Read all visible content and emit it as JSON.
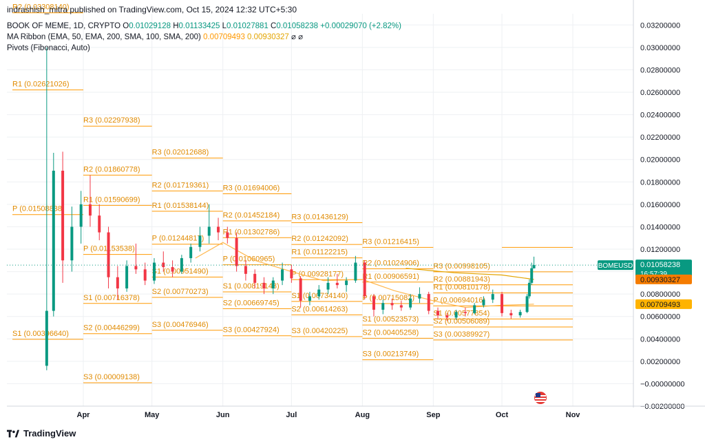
{
  "header": {
    "publisher": "indrashish_mitra published on TradingView.com, Oct 15, 2024 12:32 UTC+5:30",
    "symbol_line": "BOOK OF MEME, 1D, CRYPTO",
    "o_label": "O",
    "o_value": "0.01029128",
    "h_label": "H",
    "h_value": "0.01133425",
    "l_label": "L",
    "l_value": "0.01027881",
    "c_label": "C",
    "c_value": "0.01058238",
    "change": "+0.00029070 (+2.82%)",
    "ma_label": "MA Ribbon (EMA, 50, EMA, 200, SMA, 100, SMA, 200)",
    "ma_v1": "0.00709493",
    "ma_v2": "0.00930327",
    "pivots_label": "Pivots (Fibonacci, Auto)"
  },
  "footer": {
    "brand": "TradingView"
  },
  "colors": {
    "up": "#089981",
    "down": "#f23645",
    "pivot": "#ff9800",
    "ma_fast": "#ffb74d",
    "ma_slow": "#e3a400",
    "grid": "#eef0f3"
  },
  "chart_data": {
    "type": "candlestick",
    "symbol": "BOMEUSD",
    "ylim": [
      -0.002,
      0.033
    ],
    "y_ticks": [
      "0.03200000",
      "0.03000000",
      "0.02800000",
      "0.02600000",
      "0.02400000",
      "0.02200000",
      "0.02000000",
      "0.01800000",
      "0.01600000",
      "0.01400000",
      "0.01200000",
      "0.01000000",
      "0.00800000",
      "0.00600000",
      "0.00400000",
      "0.00200000",
      "−0.00000000",
      "−0.00200000"
    ],
    "y_tick_values": [
      0.032,
      0.03,
      0.028,
      0.026,
      0.024,
      0.022,
      0.02,
      0.018,
      0.016,
      0.014,
      0.012,
      0.01,
      0.008,
      0.006,
      0.004,
      0.002,
      0.0,
      -0.002
    ],
    "x_ticks": [
      {
        "label": "Apr",
        "date": "2024-04-01"
      },
      {
        "label": "May",
        "date": "2024-05-01"
      },
      {
        "label": "Jun",
        "date": "2024-06-01"
      },
      {
        "label": "Jul",
        "date": "2024-07-01"
      },
      {
        "label": "Aug",
        "date": "2024-08-01"
      },
      {
        "label": "Sep",
        "date": "2024-09-01"
      },
      {
        "label": "Oct",
        "date": "2024-10-01"
      },
      {
        "label": "Nov",
        "date": "2024-11-01"
      }
    ],
    "last_price": {
      "symbol": "BOMEUSD",
      "value": "0.01058238",
      "countdown": "16:57:39"
    },
    "ma_badges": [
      "0.00930327",
      "0.00709493"
    ],
    "pivot_periods": [
      {
        "start": "2024-03-01",
        "end": "2024-04-01",
        "levels": [
          {
            "name": "R2",
            "value": 0.0330814,
            "label": "R2 (0.03308140)"
          },
          {
            "name": "R1",
            "value": 0.02621026,
            "label": "R1 (0.02621026)"
          },
          {
            "name": "P",
            "value": 0.01508838,
            "label": "P (0.01508838)"
          },
          {
            "name": "S1",
            "value": 0.0039664,
            "label": "S1 (0.00396640)"
          }
        ]
      },
      {
        "start": "2024-04-01",
        "end": "2024-05-01",
        "levels": [
          {
            "name": "R3",
            "value": 0.02297938,
            "label": "R3 (0.02297938)"
          },
          {
            "name": "R2",
            "value": 0.01860778,
            "label": "R2 (0.01860778)"
          },
          {
            "name": "R1",
            "value": 0.01590699,
            "label": "R1 (0.01590699)"
          },
          {
            "name": "P",
            "value": 0.01153538,
            "label": "P (0.01153538)"
          },
          {
            "name": "S1",
            "value": 0.00716378,
            "label": "S1 (0.00716378)"
          },
          {
            "name": "S2",
            "value": 0.00446299,
            "label": "S2 (0.00446299)"
          },
          {
            "name": "S3",
            "value": 9.138e-05,
            "label": "S3 (0.00009138)"
          }
        ]
      },
      {
        "start": "2024-05-01",
        "end": "2024-06-01",
        "levels": [
          {
            "name": "R3",
            "value": 0.02012688,
            "label": "R3 (0.02012688)"
          },
          {
            "name": "R2",
            "value": 0.01719361,
            "label": "R2 (0.01719361)"
          },
          {
            "name": "R1",
            "value": 0.01538144,
            "label": "R1 (0.01538144)"
          },
          {
            "name": "P",
            "value": 0.01244817,
            "label": "P (0.01244817)"
          },
          {
            "name": "S1",
            "value": 0.0095149,
            "label": "S1 (0.00951490)"
          },
          {
            "name": "S2",
            "value": 0.00770273,
            "label": "S2 (0.00770273)"
          },
          {
            "name": "S3",
            "value": 0.00476946,
            "label": "S3 (0.00476946)"
          }
        ]
      },
      {
        "start": "2024-06-01",
        "end": "2024-07-01",
        "levels": [
          {
            "name": "R3",
            "value": 0.01694006,
            "label": "R3 (0.01694006)"
          },
          {
            "name": "R2",
            "value": 0.01452184,
            "label": "R2 (0.01452184)"
          },
          {
            "name": "R1",
            "value": 0.01302786,
            "label": "R1 (0.01302786)"
          },
          {
            "name": "P",
            "value": 0.01060965,
            "label": "P (0.01060965)"
          },
          {
            "name": "S1",
            "value": 0.00819143,
            "label": "S1 (0.00819143)"
          },
          {
            "name": "S2",
            "value": 0.00669745,
            "label": "S2 (0.00669745)"
          },
          {
            "name": "S3",
            "value": 0.00427924,
            "label": "S3 (0.00427924)"
          }
        ]
      },
      {
        "start": "2024-07-01",
        "end": "2024-08-01",
        "levels": [
          {
            "name": "R3",
            "value": 0.01436129,
            "label": "R3 (0.01436129)"
          },
          {
            "name": "R2",
            "value": 0.01242092,
            "label": "R2 (0.01242092)"
          },
          {
            "name": "R1",
            "value": 0.01122215,
            "label": "R1 (0.01122215)"
          },
          {
            "name": "P",
            "value": 0.00928177,
            "label": "P (0.00928177)"
          },
          {
            "name": "S1",
            "value": 0.0073414,
            "label": "S1 (0.00734140)"
          },
          {
            "name": "S2",
            "value": 0.00614263,
            "label": "S2 (0.00614263)"
          },
          {
            "name": "S3",
            "value": 0.00420225,
            "label": "S3 (0.00420225)"
          }
        ]
      },
      {
        "start": "2024-08-01",
        "end": "2024-09-01",
        "levels": [
          {
            "name": "R3",
            "value": 0.01216415,
            "label": "R3 (0.01216415)"
          },
          {
            "name": "R2",
            "value": 0.01024906,
            "label": "R2 (0.01024906)"
          },
          {
            "name": "R1",
            "value": 0.00906591,
            "label": "R1 (0.00906591)"
          },
          {
            "name": "P",
            "value": 0.00715082,
            "label": "P (0.00715082)"
          },
          {
            "name": "S1",
            "value": 0.00523573,
            "label": "S1 (0.00523573)"
          },
          {
            "name": "S2",
            "value": 0.00405258,
            "label": "S2 (0.00405258)"
          },
          {
            "name": "S3",
            "value": 0.00213749,
            "label": "S3 (0.00213749)"
          }
        ]
      },
      {
        "start": "2024-09-01",
        "end": "2024-10-01",
        "levels": [
          {
            "name": "R3",
            "value": 0.00998105,
            "label": "R3 (0.00998105)"
          },
          {
            "name": "R2",
            "value": 0.00881943,
            "label": "R2 (0.00881943)"
          },
          {
            "name": "R1",
            "value": 0.00810178,
            "label": "R1 (0.00810178)"
          },
          {
            "name": "P",
            "value": 0.00694016,
            "label": "P (0.00694016)"
          },
          {
            "name": "S1",
            "value": 0.00577854,
            "label": "S1 (0.00577854)"
          },
          {
            "name": "S2",
            "value": 0.00506089,
            "label": "S2 (0.00506089)"
          },
          {
            "name": "S3",
            "value": 0.00389927,
            "label": "S3 (0.00389927)"
          }
        ]
      },
      {
        "start": "2024-10-01",
        "end": "2024-11-01",
        "levels": [
          {
            "name": "R3",
            "value": 0.00998105,
            "label": ""
          },
          {
            "name": "R2",
            "value": 0.00881943,
            "label": ""
          },
          {
            "name": "R1",
            "value": 0.00810178,
            "label": ""
          },
          {
            "name": "P",
            "value": 0.00694016,
            "label": ""
          },
          {
            "name": "S1",
            "value": 0.00577854,
            "label": ""
          },
          {
            "name": "S2",
            "value": 0.00506089,
            "label": ""
          },
          {
            "name": "S3",
            "value": 0.00389927,
            "label": ""
          },
          {
            "name": "R4",
            "value": 0.01216415,
            "label": ""
          }
        ]
      }
    ],
    "candles_weekly_approx": [
      {
        "date": "2024-03-16",
        "o": 0.0016,
        "h": 0.03,
        "l": 0.0012,
        "c": 0.0065
      },
      {
        "date": "2024-03-19",
        "o": 0.0065,
        "h": 0.0206,
        "l": 0.006,
        "c": 0.019
      },
      {
        "date": "2024-03-23",
        "o": 0.019,
        "h": 0.0207,
        "l": 0.009,
        "c": 0.011
      },
      {
        "date": "2024-03-27",
        "o": 0.011,
        "h": 0.0158,
        "l": 0.01,
        "c": 0.014
      },
      {
        "date": "2024-03-31",
        "o": 0.014,
        "h": 0.0172,
        "l": 0.0125,
        "c": 0.016
      },
      {
        "date": "2024-04-04",
        "o": 0.016,
        "h": 0.0186,
        "l": 0.014,
        "c": 0.015
      },
      {
        "date": "2024-04-08",
        "o": 0.015,
        "h": 0.016,
        "l": 0.0128,
        "c": 0.0135
      },
      {
        "date": "2024-04-12",
        "o": 0.0135,
        "h": 0.014,
        "l": 0.0085,
        "c": 0.0095
      },
      {
        "date": "2024-04-16",
        "o": 0.0095,
        "h": 0.0105,
        "l": 0.0075,
        "c": 0.0085
      },
      {
        "date": "2024-04-20",
        "o": 0.0085,
        "h": 0.011,
        "l": 0.0082,
        "c": 0.0105
      },
      {
        "date": "2024-04-24",
        "o": 0.0105,
        "h": 0.0125,
        "l": 0.0098,
        "c": 0.0102
      },
      {
        "date": "2024-04-28",
        "o": 0.0102,
        "h": 0.0108,
        "l": 0.0088,
        "c": 0.0092
      },
      {
        "date": "2024-05-02",
        "o": 0.0092,
        "h": 0.0112,
        "l": 0.0089,
        "c": 0.0108
      },
      {
        "date": "2024-05-06",
        "o": 0.0108,
        "h": 0.0118,
        "l": 0.01,
        "c": 0.0104
      },
      {
        "date": "2024-05-10",
        "o": 0.0104,
        "h": 0.011,
        "l": 0.0095,
        "c": 0.01
      },
      {
        "date": "2024-05-14",
        "o": 0.01,
        "h": 0.0115,
        "l": 0.0098,
        "c": 0.0112
      },
      {
        "date": "2024-05-18",
        "o": 0.0112,
        "h": 0.0125,
        "l": 0.0108,
        "c": 0.0122
      },
      {
        "date": "2024-05-22",
        "o": 0.0122,
        "h": 0.014,
        "l": 0.0118,
        "c": 0.0132
      },
      {
        "date": "2024-05-26",
        "o": 0.0132,
        "h": 0.016,
        "l": 0.0125,
        "c": 0.014
      },
      {
        "date": "2024-05-30",
        "o": 0.014,
        "h": 0.0148,
        "l": 0.0128,
        "c": 0.0135
      },
      {
        "date": "2024-06-03",
        "o": 0.0135,
        "h": 0.014,
        "l": 0.0125,
        "c": 0.013
      },
      {
        "date": "2024-06-07",
        "o": 0.013,
        "h": 0.0135,
        "l": 0.01,
        "c": 0.0105
      },
      {
        "date": "2024-06-11",
        "o": 0.0105,
        "h": 0.011,
        "l": 0.0092,
        "c": 0.0098
      },
      {
        "date": "2024-06-15",
        "o": 0.0098,
        "h": 0.0102,
        "l": 0.0085,
        "c": 0.009
      },
      {
        "date": "2024-06-19",
        "o": 0.009,
        "h": 0.0095,
        "l": 0.008,
        "c": 0.0085
      },
      {
        "date": "2024-06-23",
        "o": 0.0085,
        "h": 0.0095,
        "l": 0.008,
        "c": 0.0092
      },
      {
        "date": "2024-06-27",
        "o": 0.0092,
        "h": 0.0108,
        "l": 0.0088,
        "c": 0.0102
      },
      {
        "date": "2024-07-01",
        "o": 0.0102,
        "h": 0.0106,
        "l": 0.009,
        "c": 0.0094
      },
      {
        "date": "2024-07-05",
        "o": 0.0094,
        "h": 0.0096,
        "l": 0.0068,
        "c": 0.0074
      },
      {
        "date": "2024-07-09",
        "o": 0.0074,
        "h": 0.0082,
        "l": 0.007,
        "c": 0.0078
      },
      {
        "date": "2024-07-13",
        "o": 0.0078,
        "h": 0.0088,
        "l": 0.0075,
        "c": 0.0084
      },
      {
        "date": "2024-07-17",
        "o": 0.0084,
        "h": 0.0095,
        "l": 0.008,
        "c": 0.009
      },
      {
        "date": "2024-07-21",
        "o": 0.009,
        "h": 0.0098,
        "l": 0.0085,
        "c": 0.0088
      },
      {
        "date": "2024-07-25",
        "o": 0.0088,
        "h": 0.0095,
        "l": 0.0082,
        "c": 0.0092
      },
      {
        "date": "2024-07-29",
        "o": 0.0092,
        "h": 0.0114,
        "l": 0.009,
        "c": 0.0108
      },
      {
        "date": "2024-08-02",
        "o": 0.0108,
        "h": 0.011,
        "l": 0.0075,
        "c": 0.0078
      },
      {
        "date": "2024-08-06",
        "o": 0.0078,
        "h": 0.008,
        "l": 0.006,
        "c": 0.0066
      },
      {
        "date": "2024-08-10",
        "o": 0.0066,
        "h": 0.0075,
        "l": 0.0062,
        "c": 0.0072
      },
      {
        "date": "2024-08-14",
        "o": 0.0072,
        "h": 0.0076,
        "l": 0.0066,
        "c": 0.007
      },
      {
        "date": "2024-08-18",
        "o": 0.007,
        "h": 0.0074,
        "l": 0.0065,
        "c": 0.0068
      },
      {
        "date": "2024-08-22",
        "o": 0.0068,
        "h": 0.008,
        "l": 0.0066,
        "c": 0.0076
      },
      {
        "date": "2024-08-26",
        "o": 0.0076,
        "h": 0.0086,
        "l": 0.0072,
        "c": 0.008
      },
      {
        "date": "2024-08-30",
        "o": 0.008,
        "h": 0.0082,
        "l": 0.0062,
        "c": 0.0065
      },
      {
        "date": "2024-09-03",
        "o": 0.0065,
        "h": 0.0068,
        "l": 0.0058,
        "c": 0.0061
      },
      {
        "date": "2024-09-07",
        "o": 0.0061,
        "h": 0.0063,
        "l": 0.0056,
        "c": 0.0059
      },
      {
        "date": "2024-09-11",
        "o": 0.0059,
        "h": 0.0066,
        "l": 0.0057,
        "c": 0.0064
      },
      {
        "date": "2024-09-15",
        "o": 0.0064,
        "h": 0.0068,
        "l": 0.006,
        "c": 0.0063
      },
      {
        "date": "2024-09-19",
        "o": 0.0063,
        "h": 0.0072,
        "l": 0.0062,
        "c": 0.007
      },
      {
        "date": "2024-09-23",
        "o": 0.007,
        "h": 0.0078,
        "l": 0.0068,
        "c": 0.0075
      },
      {
        "date": "2024-09-27",
        "o": 0.0075,
        "h": 0.0084,
        "l": 0.0072,
        "c": 0.008
      },
      {
        "date": "2024-10-01",
        "o": 0.008,
        "h": 0.0082,
        "l": 0.006,
        "c": 0.0063
      },
      {
        "date": "2024-10-05",
        "o": 0.0063,
        "h": 0.0066,
        "l": 0.0058,
        "c": 0.0061
      },
      {
        "date": "2024-10-09",
        "o": 0.0061,
        "h": 0.0066,
        "l": 0.0059,
        "c": 0.0064
      },
      {
        "date": "2024-10-12",
        "o": 0.0064,
        "h": 0.008,
        "l": 0.0063,
        "c": 0.0078
      },
      {
        "date": "2024-10-13",
        "o": 0.0078,
        "h": 0.0093,
        "l": 0.0076,
        "c": 0.009
      },
      {
        "date": "2024-10-14",
        "o": 0.009,
        "h": 0.0108,
        "l": 0.0088,
        "c": 0.0103
      },
      {
        "date": "2024-10-15",
        "o": 0.01029128,
        "h": 0.01133425,
        "l": 0.01027881,
        "c": 0.01058238
      }
    ],
    "ma_fast_approx": [
      {
        "date": "2024-05-20",
        "v": 0.0112
      },
      {
        "date": "2024-06-01",
        "v": 0.0126
      },
      {
        "date": "2024-06-15",
        "v": 0.011
      },
      {
        "date": "2024-07-01",
        "v": 0.01
      },
      {
        "date": "2024-07-15",
        "v": 0.0092
      },
      {
        "date": "2024-08-01",
        "v": 0.0093
      },
      {
        "date": "2024-08-15",
        "v": 0.0083
      },
      {
        "date": "2024-09-01",
        "v": 0.0074
      },
      {
        "date": "2024-09-15",
        "v": 0.0068
      },
      {
        "date": "2024-10-01",
        "v": 0.007
      },
      {
        "date": "2024-10-15",
        "v": 0.00709493
      }
    ],
    "ma_slow_approx": [
      {
        "date": "2024-08-20",
        "v": 0.0103
      },
      {
        "date": "2024-09-10",
        "v": 0.0099
      },
      {
        "date": "2024-10-01",
        "v": 0.0097
      },
      {
        "date": "2024-10-15",
        "v": 0.00930327
      }
    ]
  }
}
